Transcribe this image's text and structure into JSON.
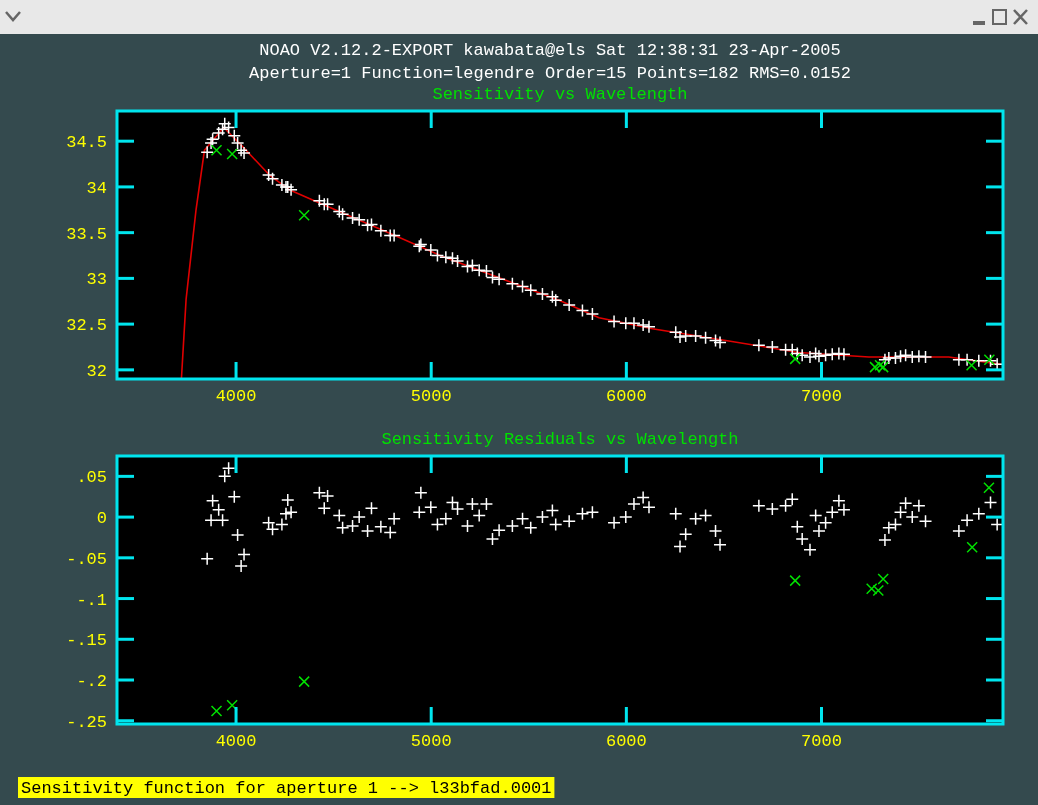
{
  "chart_data": [
    {
      "type": "scatter",
      "title": "Sensitivity vs Wavelength",
      "annotations": [
        "NOAO V2.12.2-EXPORT kawabata@els Sat 12:38:31 23-Apr-2005",
        "Aperture=1  Function=legendre  Order=15  Points=182  RMS=0.0152"
      ],
      "xlim": [
        3390,
        7930
      ],
      "xticks": [
        4000,
        5000,
        6000,
        7000
      ],
      "ylim": [
        31.9,
        34.83
      ],
      "yticks": [
        32,
        32.5,
        33,
        33.5,
        34,
        34.5
      ],
      "grid": false,
      "series": [
        {
          "type": "line",
          "color": "#e00000",
          "marker": "none",
          "line_style": "solid",
          "x": [
            3720,
            3744,
            3795,
            3838,
            3937,
            4034,
            4171,
            4273,
            4410,
            4802,
            5058,
            5655,
            5860,
            6133,
            6509,
            6884,
            7243,
            7652,
            7925
          ],
          "values": [
            31.9,
            32.77,
            33.75,
            34.4,
            34.65,
            34.44,
            34.13,
            33.97,
            33.84,
            33.48,
            33.24,
            32.76,
            32.57,
            32.45,
            32.32,
            32.19,
            32.14,
            32.14,
            32.06
          ]
        },
        {
          "color": "#ffffff",
          "marker": "cross",
          "x": [
            3852,
            3872,
            3880,
            3911,
            3931,
            3942,
            3962,
            3991,
            4008,
            4041,
            4026,
            4167,
            4187,
            4235,
            4256,
            4282,
            4265,
            4427,
            4469,
            4452,
            4529,
            4546,
            4597,
            4631,
            4674,
            4694,
            4742,
            4790,
            4810,
            4947,
            4939,
            4998,
            5032,
            5075,
            5109,
            5135,
            5186,
            5211,
            5246,
            5283,
            5314,
            5348,
            5416,
            5468,
            5510,
            5570,
            5621,
            5638,
            5707,
            5775,
            5826,
            5937,
            5997,
            6039,
            6086,
            6116,
            6253,
            6304,
            6275,
            6355,
            6406,
            6457,
            6480,
            6679,
            6748,
            6816,
            6850,
            6876,
            6901,
            6941,
            6970,
            6987,
            7021,
            7055,
            7089,
            7115,
            7325,
            7345,
            7379,
            7405,
            7431,
            7465,
            7499,
            7533,
            7704,
            7746,
            7806,
            7866,
            7900
          ],
          "values": [
            34.38,
            34.48,
            34.52,
            34.59,
            34.63,
            34.69,
            34.65,
            34.56,
            34.48,
            34.37,
            34.4,
            34.13,
            34.09,
            34.02,
            34.0,
            33.97,
            34.0,
            33.85,
            33.81,
            33.81,
            33.73,
            33.7,
            33.66,
            33.64,
            33.58,
            33.59,
            33.52,
            33.47,
            33.47,
            33.37,
            33.35,
            33.31,
            33.25,
            33.23,
            33.22,
            33.19,
            33.13,
            33.14,
            33.09,
            33.08,
            33.01,
            32.99,
            32.94,
            32.91,
            32.87,
            32.83,
            32.8,
            32.76,
            32.71,
            32.65,
            32.61,
            32.53,
            32.51,
            32.51,
            32.49,
            32.47,
            32.41,
            32.37,
            32.36,
            32.37,
            32.35,
            32.32,
            32.3,
            32.27,
            32.25,
            32.22,
            32.22,
            32.18,
            32.16,
            32.14,
            32.18,
            32.15,
            32.16,
            32.17,
            32.18,
            32.17,
            32.11,
            32.13,
            32.13,
            32.15,
            32.16,
            32.14,
            32.15,
            32.14,
            32.11,
            32.11,
            32.1,
            32.1,
            32.06
          ]
        },
        {
          "color": "#00e000",
          "marker": "x",
          "x": [
            3900,
            3980,
            4349,
            6865,
            7274,
            7300,
            7316,
            7769,
            7860
          ],
          "values": [
            34.4,
            34.36,
            33.69,
            32.12,
            32.03,
            32.05,
            32.03,
            32.05,
            32.11
          ]
        }
      ]
    },
    {
      "type": "scatter",
      "title": "Sensitivity Residuals vs Wavelength",
      "annotations": [
        "Sensitivity function for aperture 1 --> l33bfad.0001"
      ],
      "xlim": [
        3390,
        7930
      ],
      "xticks": [
        4000,
        5000,
        6000,
        7000
      ],
      "ylim": [
        -0.254,
        0.075
      ],
      "yticks": [
        {
          "value": -0.25,
          "label": "-.25"
        },
        {
          "value": -0.2,
          "label": "-.2"
        },
        {
          "value": -0.15,
          "label": "-.15"
        },
        {
          "value": -0.1,
          "label": "-.1"
        },
        {
          "value": -0.05,
          "label": "-.05"
        },
        0,
        {
          "value": 0.05,
          "label": ".05"
        }
      ],
      "grid": false,
      "series": [
        {
          "color": "#ffffff",
          "marker": "cross",
          "x": [
            3852,
            3872,
            3880,
            3911,
            3931,
            3942,
            3962,
            3991,
            4008,
            4041,
            4026,
            4167,
            4187,
            4235,
            4256,
            4282,
            4265,
            4427,
            4469,
            4452,
            4529,
            4546,
            4597,
            4631,
            4674,
            4694,
            4742,
            4790,
            4810,
            4947,
            4939,
            4998,
            5032,
            5075,
            5109,
            5135,
            5186,
            5211,
            5246,
            5283,
            5314,
            5348,
            5416,
            5468,
            5510,
            5570,
            5621,
            5638,
            5707,
            5775,
            5826,
            5937,
            5997,
            6039,
            6086,
            6116,
            6253,
            6304,
            6275,
            6355,
            6406,
            6457,
            6480,
            6679,
            6748,
            6816,
            6850,
            6876,
            6901,
            6941,
            6970,
            6987,
            7021,
            7055,
            7089,
            7115,
            7325,
            7345,
            7379,
            7405,
            7431,
            7465,
            7499,
            7533,
            7704,
            7746,
            7806,
            7866,
            7900
          ],
          "values": [
            -0.051,
            -0.004,
            0.02,
            0.009,
            -0.004,
            0.05,
            0.06,
            0.025,
            -0.022,
            -0.046,
            -0.06,
            -0.007,
            -0.015,
            -0.009,
            0.004,
            0.006,
            0.021,
            0.03,
            0.026,
            0.011,
            0.002,
            -0.013,
            -0.011,
            0.0,
            -0.017,
            0.011,
            -0.012,
            -0.019,
            -0.002,
            0.03,
            0.006,
            0.012,
            -0.009,
            -0.002,
            0.018,
            0.01,
            -0.011,
            0.016,
            0.002,
            0.016,
            -0.027,
            -0.016,
            -0.011,
            -0.002,
            -0.013,
            0.0,
            0.008,
            -0.009,
            -0.005,
            0.004,
            0.006,
            -0.007,
            0.0,
            0.016,
            0.024,
            0.012,
            0.004,
            -0.021,
            -0.036,
            -0.002,
            0.002,
            -0.017,
            -0.034,
            0.014,
            0.01,
            0.014,
            0.022,
            -0.012,
            -0.027,
            -0.04,
            0.002,
            -0.017,
            -0.007,
            0.006,
            0.02,
            0.009,
            -0.028,
            -0.013,
            -0.009,
            0.006,
            0.017,
            0.0,
            0.014,
            -0.005,
            -0.017,
            -0.004,
            0.004,
            0.018,
            -0.009
          ]
        },
        {
          "color": "#00e000",
          "marker": "x",
          "x": [
            3900,
            3980,
            4349,
            6865,
            7257,
            7291,
            7316,
            7772,
            7858
          ],
          "values": [
            -0.238,
            -0.231,
            -0.202,
            -0.078,
            -0.088,
            -0.09,
            -0.076,
            -0.037,
            0.036
          ]
        }
      ]
    }
  ]
}
